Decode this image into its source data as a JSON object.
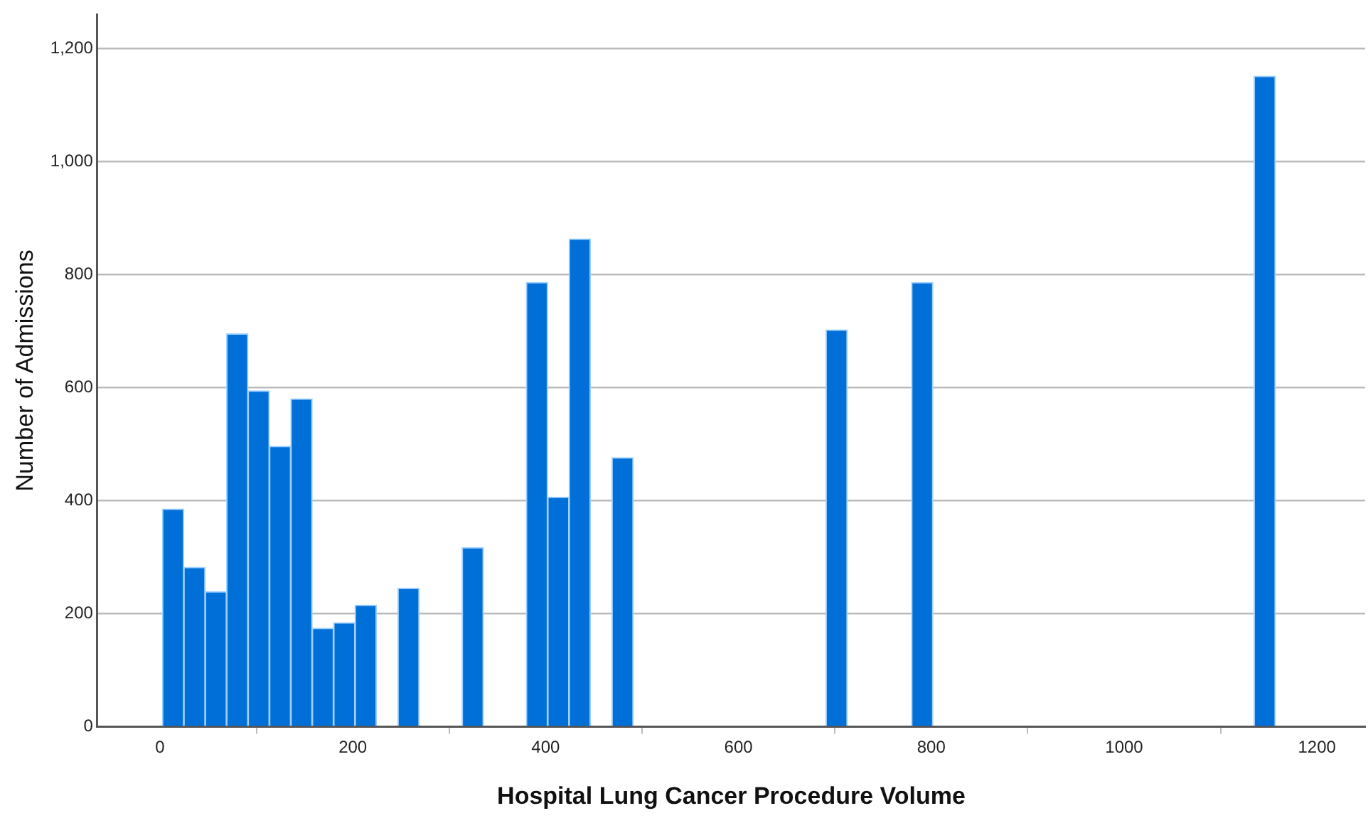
{
  "chart_data": {
    "type": "histogram",
    "xlabel": "Hospital Lung Cancer Procedure Volume",
    "ylabel": "Number of Admissions",
    "bins": [
      2.5,
      24.7,
      46.9,
      69.1,
      91.3,
      113.5,
      135.7,
      157.9,
      180.1,
      202.3,
      224.5,
      246.7,
      268.9,
      291.1,
      313.3,
      335.5,
      357.7,
      379.9,
      402.1,
      424.3,
      446.5,
      468.7,
      490.9,
      513.1,
      535.3,
      557.5,
      579.7,
      601.9,
      624.1,
      646.3,
      668.5,
      690.7,
      712.9,
      735.1,
      757.3,
      779.5,
      801.7,
      823.9,
      846.1,
      868.3,
      890.5,
      912.7,
      934.9,
      957.1,
      979.3,
      1001.5,
      1023.7,
      1045.9,
      1068.1,
      1090.3,
      1112.5,
      1134.7,
      1156.9
    ],
    "values": [
      385,
      282,
      239,
      695,
      594,
      496,
      580,
      174,
      184,
      215,
      0,
      245,
      0,
      0,
      317,
      0,
      0,
      786,
      406,
      863,
      0,
      476,
      0,
      0,
      0,
      0,
      0,
      0,
      0,
      0,
      0,
      702,
      0,
      0,
      0,
      786,
      0,
      0,
      0,
      0,
      0,
      0,
      0,
      0,
      0,
      0,
      0,
      0,
      0,
      0,
      0,
      1151
    ],
    "color": "#0070d8",
    "xlim": [
      -65,
      1250
    ],
    "xticks": [
      0,
      200,
      400,
      600,
      800,
      1000,
      1200
    ],
    "ylim": [
      0,
      1260
    ],
    "yticks": [
      0,
      200,
      400,
      600,
      800,
      {
        "value": 1000,
        "label": "1,000"
      },
      {
        "value": 1200,
        "label": "1,200"
      }
    ],
    "grid": "y"
  }
}
